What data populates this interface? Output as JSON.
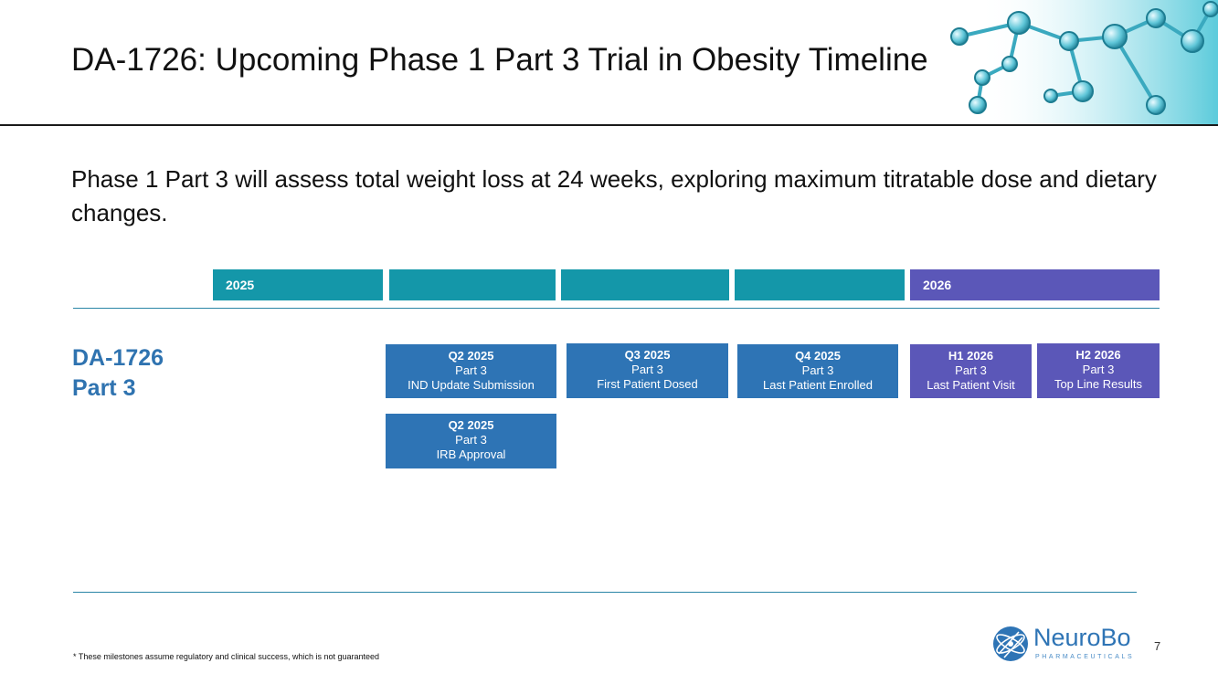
{
  "slide": {
    "title": "DA-1726: Upcoming Phase 1 Part 3 Trial in Obesity Timeline",
    "subtitle": "Phase 1 Part 3 will assess total weight loss at 24 weeks, exploring maximum titratable dose and dietary changes.",
    "page_number": "7",
    "footnote": "* These milestones assume regulatory and clinical success, which is not guaranteed"
  },
  "timeline": {
    "years": [
      "2025",
      "",
      "",
      "",
      "2026"
    ],
    "row_label_line1": "DA-1726",
    "row_label_line2": "Part 3",
    "milestones": [
      {
        "period": "Q2 2025",
        "part": "Part 3",
        "event": "IND Update Submission"
      },
      {
        "period": "Q3 2025",
        "part": "Part 3",
        "event": "First Patient Dosed"
      },
      {
        "period": "Q4 2025",
        "part": "Part 3",
        "event": "Last Patient Enrolled"
      },
      {
        "period": "H1 2026",
        "part": "Part 3",
        "event": "Last Patient Visit"
      },
      {
        "period": "H2 2026",
        "part": "Part 3",
        "event": "Top Line Results"
      },
      {
        "period": "Q2 2025",
        "part": "Part 3",
        "event": "IRB Approval"
      }
    ]
  },
  "logo": {
    "name": "NeuroBo",
    "tagline": "PHARMACEUTICALS",
    "icon": "atom-logo-icon"
  },
  "colors": {
    "teal": "#1497a9",
    "purple": "#5b57b8",
    "blue": "#2e74b5",
    "label_blue": "#2f73b0"
  }
}
